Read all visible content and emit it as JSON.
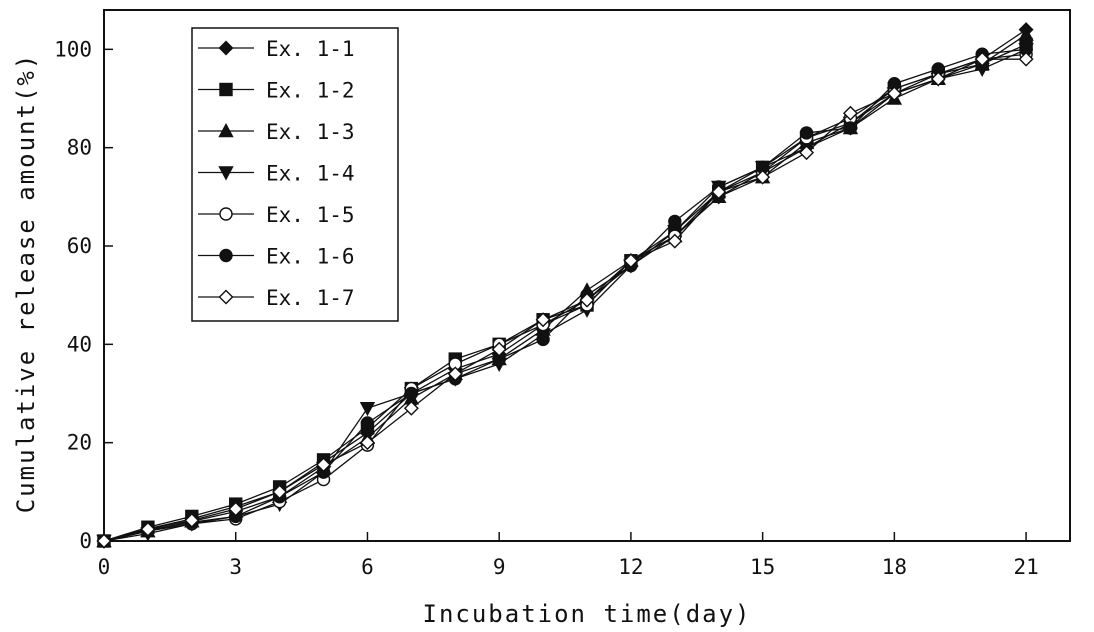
{
  "chart_data": {
    "type": "line",
    "title": "",
    "xlabel": "Incubation time(day)",
    "ylabel": "Cumulative release amount(%)",
    "xlim": [
      0,
      22
    ],
    "ylim": [
      0,
      108
    ],
    "xticks": [
      0,
      3,
      6,
      9,
      12,
      15,
      18,
      21
    ],
    "yticks": [
      0,
      20,
      40,
      60,
      80,
      100
    ],
    "grid": false,
    "legend_position": "top-left",
    "x": [
      0,
      1,
      2,
      3,
      4,
      5,
      6,
      7,
      8,
      9,
      10,
      11,
      12,
      13,
      14,
      15,
      16,
      17,
      18,
      19,
      20,
      21
    ],
    "series": [
      {
        "name": "Ex. 1-1",
        "marker": "diamond-filled",
        "values": [
          0,
          2.5,
          4.5,
          7,
          10,
          16,
          22,
          30,
          35,
          38,
          44,
          49,
          56,
          62,
          70,
          75,
          80,
          84,
          91,
          95,
          98,
          104
        ]
      },
      {
        "name": "Ex. 1-2",
        "marker": "square-filled",
        "values": [
          0,
          2.8,
          5,
          7.5,
          11,
          16.5,
          23,
          31,
          37,
          40,
          45,
          48,
          57,
          63,
          71,
          76,
          82,
          85,
          92,
          95,
          97,
          101
        ]
      },
      {
        "name": "Ex. 1-3",
        "marker": "triangle-up-filled",
        "values": [
          0,
          2,
          4,
          6,
          9,
          15,
          21,
          29,
          34,
          37,
          43,
          51,
          57,
          62,
          70,
          74,
          81,
          84,
          90,
          94,
          97,
          103
        ]
      },
      {
        "name": "Ex. 1-4",
        "marker": "triangle-down-filled",
        "values": [
          0,
          1.5,
          3.5,
          5,
          7.5,
          14,
          27,
          30,
          33,
          36,
          42,
          47,
          56,
          63,
          72,
          76,
          80,
          85,
          91,
          94,
          96,
          100
        ]
      },
      {
        "name": "Ex. 1-5",
        "marker": "circle-open",
        "values": [
          0,
          2,
          3.5,
          4.5,
          8,
          12.5,
          19.5,
          31,
          36,
          40,
          44,
          48,
          57,
          62,
          71,
          75,
          82,
          86,
          92,
          95,
          98,
          99
        ]
      },
      {
        "name": "Ex. 1-6",
        "marker": "circle-filled",
        "values": [
          0,
          2.2,
          3.8,
          5,
          9,
          14,
          24,
          30,
          33,
          37,
          41,
          50,
          56,
          65,
          72,
          76,
          83,
          84,
          93,
          96,
          99,
          100
        ]
      },
      {
        "name": "Ex. 1-7",
        "marker": "diamond-open",
        "values": [
          0,
          2.4,
          4.2,
          6.5,
          10,
          15.5,
          20,
          27,
          34,
          39,
          45,
          49,
          57,
          61,
          71,
          74,
          79,
          87,
          91,
          94,
          98,
          98
        ]
      }
    ]
  }
}
